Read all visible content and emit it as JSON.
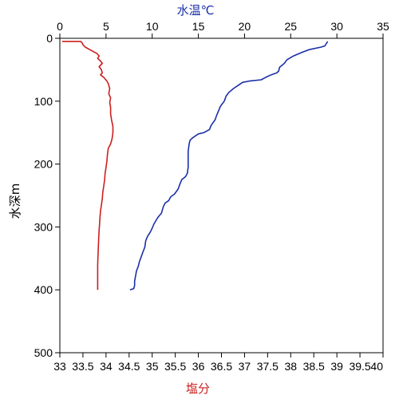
{
  "chart_data": {
    "type": "line",
    "y_axis": {
      "label": "水深m",
      "range": [
        0,
        500
      ],
      "inverted": true,
      "ticks": [
        "0",
        "100",
        "200",
        "300",
        "400",
        "500"
      ]
    },
    "x_axis_top": {
      "label": "水温℃",
      "range": [
        0,
        35
      ],
      "ticks": [
        "0",
        "5",
        "10",
        "15",
        "20",
        "25",
        "30",
        "35"
      ],
      "color": "#1c2fa8"
    },
    "x_axis_bottom": {
      "label": "塩分",
      "range": [
        33,
        40
      ],
      "ticks": [
        "33",
        "33.5",
        "34",
        "34.5",
        "35",
        "35.5",
        "36",
        "36.5",
        "37",
        "37.5",
        "38",
        "38.5",
        "39",
        "39.5",
        "40"
      ],
      "color": "#cc1f1f"
    },
    "series": [
      {
        "axis": "top",
        "color": "#1c2fa8",
        "points": [
          [
            29.0,
            5
          ],
          [
            28.7,
            12
          ],
          [
            28.3,
            14
          ],
          [
            27.0,
            18
          ],
          [
            26.3,
            22
          ],
          [
            25.3,
            28
          ],
          [
            24.6,
            34
          ],
          [
            24.3,
            40
          ],
          [
            23.8,
            46
          ],
          [
            23.7,
            52
          ],
          [
            23.5,
            55
          ],
          [
            22.9,
            58
          ],
          [
            22.3,
            62
          ],
          [
            21.8,
            66
          ],
          [
            20.5,
            68
          ],
          [
            19.8,
            70
          ],
          [
            19.3,
            75
          ],
          [
            18.8,
            80
          ],
          [
            18.3,
            86
          ],
          [
            18.0,
            92
          ],
          [
            17.8,
            100
          ],
          [
            17.4,
            108
          ],
          [
            17.2,
            115
          ],
          [
            17.0,
            122
          ],
          [
            16.8,
            130
          ],
          [
            16.4,
            138
          ],
          [
            16.2,
            145
          ],
          [
            15.6,
            150
          ],
          [
            15.0,
            152
          ],
          [
            14.4,
            158
          ],
          [
            14.1,
            162
          ],
          [
            14.0,
            168
          ],
          [
            13.9,
            180
          ],
          [
            13.9,
            192
          ],
          [
            13.9,
            205
          ],
          [
            13.8,
            215
          ],
          [
            13.6,
            220
          ],
          [
            13.2,
            225
          ],
          [
            13.0,
            232
          ],
          [
            12.8,
            240
          ],
          [
            12.4,
            248
          ],
          [
            12.0,
            252
          ],
          [
            11.8,
            258
          ],
          [
            11.4,
            262
          ],
          [
            11.2,
            268
          ],
          [
            11.0,
            278
          ],
          [
            10.6,
            285
          ],
          [
            10.2,
            295
          ],
          [
            10.0,
            302
          ],
          [
            9.8,
            308
          ],
          [
            9.5,
            315
          ],
          [
            9.3,
            322
          ],
          [
            9.2,
            332
          ],
          [
            9.0,
            340
          ],
          [
            8.8,
            348
          ],
          [
            8.6,
            356
          ],
          [
            8.5,
            362
          ],
          [
            8.3,
            370
          ],
          [
            8.2,
            378
          ],
          [
            8.1,
            386
          ],
          [
            8.1,
            393
          ],
          [
            8.0,
            398
          ],
          [
            7.6,
            400
          ]
        ]
      },
      {
        "axis": "bottom",
        "color": "#cc1f1f",
        "points": [
          [
            33.05,
            5
          ],
          [
            33.45,
            5
          ],
          [
            33.48,
            7
          ],
          [
            33.5,
            10
          ],
          [
            33.55,
            14
          ],
          [
            33.7,
            20
          ],
          [
            33.8,
            24
          ],
          [
            33.85,
            28
          ],
          [
            33.82,
            32
          ],
          [
            33.88,
            36
          ],
          [
            33.92,
            40
          ],
          [
            33.85,
            45
          ],
          [
            33.9,
            50
          ],
          [
            33.92,
            55
          ],
          [
            33.88,
            58
          ],
          [
            33.95,
            62
          ],
          [
            34.02,
            68
          ],
          [
            34.05,
            72
          ],
          [
            34.08,
            80
          ],
          [
            34.06,
            88
          ],
          [
            34.1,
            95
          ],
          [
            34.08,
            102
          ],
          [
            34.1,
            110
          ],
          [
            34.1,
            120
          ],
          [
            34.12,
            130
          ],
          [
            34.15,
            140
          ],
          [
            34.15,
            150
          ],
          [
            34.13,
            160
          ],
          [
            34.1,
            168
          ],
          [
            34.05,
            175
          ],
          [
            34.03,
            185
          ],
          [
            34.02,
            195
          ],
          [
            34.0,
            205
          ],
          [
            33.98,
            215
          ],
          [
            33.97,
            225
          ],
          [
            33.95,
            235
          ],
          [
            33.93,
            245
          ],
          [
            33.92,
            255
          ],
          [
            33.9,
            265
          ],
          [
            33.88,
            275
          ],
          [
            33.87,
            285
          ],
          [
            33.86,
            295
          ],
          [
            33.85,
            305
          ],
          [
            33.84,
            320
          ],
          [
            33.83,
            340
          ],
          [
            33.82,
            360
          ],
          [
            33.82,
            380
          ],
          [
            33.82,
            400
          ]
        ]
      }
    ]
  }
}
